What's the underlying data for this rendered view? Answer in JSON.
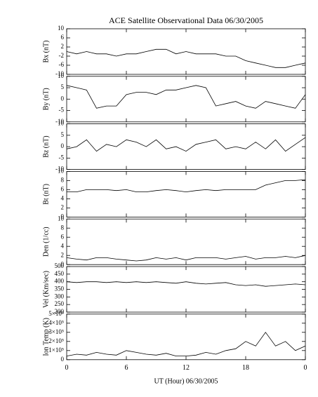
{
  "chart_data": {
    "type": "line",
    "title": "ACE Satellite Observational Data   06/30/2005",
    "xlabel": "UT (Hour)   06/30/2005",
    "xlim": [
      0,
      24
    ],
    "xticks": [
      0,
      6,
      12,
      18,
      {
        "value": 24,
        "label": "0"
      }
    ],
    "x": [
      0,
      1,
      2,
      3,
      4,
      5,
      6,
      7,
      8,
      9,
      10,
      11,
      12,
      13,
      14,
      15,
      16,
      17,
      18,
      19,
      20,
      21,
      22,
      23,
      24
    ],
    "color": "#000000",
    "panels": [
      {
        "ylabel": "Bx (nT)",
        "ylim": [
          -10,
          10
        ],
        "yticks": [
          -10,
          -6,
          -2,
          2,
          6,
          10
        ],
        "values": [
          0,
          -1,
          0,
          -1,
          -1,
          -2,
          -1,
          -1,
          0,
          1,
          1,
          -1,
          0,
          -1,
          -1,
          -1,
          -2,
          -2,
          -4,
          -5,
          -6,
          -7,
          -7,
          -6,
          -5
        ]
      },
      {
        "ylabel": "By (nT)",
        "ylim": [
          -10,
          10
        ],
        "yticks": [
          -10,
          -5,
          0,
          5,
          10
        ],
        "values": [
          6,
          5,
          4,
          -4,
          -3,
          -3,
          2,
          3,
          3,
          2,
          4,
          4,
          5,
          6,
          5,
          -3,
          -2,
          -1,
          -3,
          -4,
          -1,
          -2,
          -3,
          -4,
          2
        ]
      },
      {
        "ylabel": "Bz (nT)",
        "ylim": [
          -10,
          10
        ],
        "yticks": [
          -10,
          -5,
          0,
          5,
          10
        ],
        "values": [
          -1,
          0,
          3,
          -2,
          1,
          0,
          3,
          2,
          0,
          3,
          -1,
          0,
          -2,
          1,
          2,
          3,
          -1,
          0,
          -1,
          2,
          -1,
          3,
          -2,
          1,
          4
        ]
      },
      {
        "ylabel": "Bt (nT)",
        "ylim": [
          0,
          10
        ],
        "yticks": [
          0,
          2,
          4,
          6,
          8,
          10
        ],
        "values": [
          5.5,
          5.5,
          6,
          6,
          6,
          5.8,
          6,
          5.5,
          5.5,
          5.8,
          6,
          5.8,
          5.5,
          5.8,
          6,
          5.8,
          6,
          6,
          6,
          6,
          7,
          7.5,
          8,
          8,
          8.2
        ]
      },
      {
        "ylabel": "Den (1/cc)",
        "ylim": [
          0,
          10
        ],
        "yticks": [
          0,
          2,
          4,
          6,
          8,
          10
        ],
        "values": [
          1.5,
          1.2,
          1,
          1.5,
          1.5,
          1.2,
          1,
          0.8,
          1,
          1.5,
          1.2,
          1.5,
          1,
          1.5,
          1.5,
          1.5,
          1.2,
          1.5,
          1.8,
          1.2,
          1.5,
          1.5,
          1.8,
          1.5,
          2
        ]
      },
      {
        "ylabel": "Vel (Km/sec)",
        "ylim": [
          200,
          500
        ],
        "yticks": [
          200,
          250,
          300,
          350,
          400,
          450,
          500
        ],
        "values": [
          400,
          395,
          400,
          400,
          395,
          400,
          395,
          400,
          395,
          400,
          395,
          390,
          400,
          390,
          385,
          390,
          395,
          380,
          375,
          380,
          370,
          375,
          380,
          385,
          380
        ]
      },
      {
        "ylabel": "Ion Temp (K)",
        "ylim": [
          0,
          500000
        ],
        "yticks": [
          0,
          {
            "value": 100000,
            "label": "1×10⁵"
          },
          {
            "value": 200000,
            "label": "2×10⁵"
          },
          {
            "value": 300000,
            "label": "3×10⁵"
          },
          {
            "value": 400000,
            "label": "4×10⁵"
          },
          {
            "value": 500000,
            "label": "5×10⁵"
          }
        ],
        "values": [
          40000,
          60000,
          50000,
          80000,
          60000,
          50000,
          100000,
          80000,
          60000,
          50000,
          70000,
          40000,
          40000,
          50000,
          80000,
          60000,
          100000,
          120000,
          200000,
          150000,
          300000,
          150000,
          200000,
          100000,
          150000
        ]
      }
    ]
  }
}
